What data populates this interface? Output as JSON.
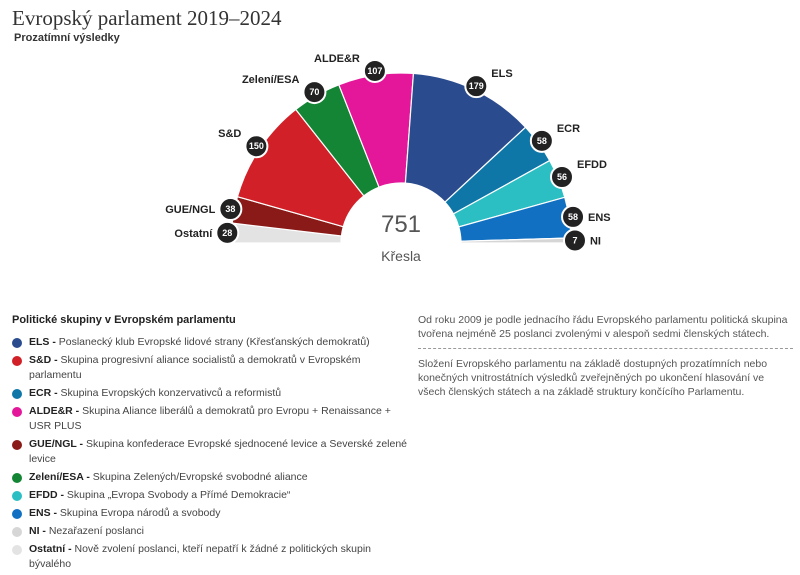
{
  "header": {
    "title": "Evropský parlament 2019–2024",
    "subtitle": "Prozatímní výsledky"
  },
  "chart_data": {
    "type": "pie",
    "variant": "parliament-hemicycle",
    "total": "751",
    "total_label": "Křesla",
    "series": [
      {
        "label": "Ostatní",
        "value": 28,
        "color": "#e3e3e3"
      },
      {
        "label": "GUE/NGL",
        "value": 38,
        "color": "#8a1a17"
      },
      {
        "label": "S&D",
        "value": 150,
        "color": "#d12027"
      },
      {
        "label": "Zelení/ESA",
        "value": 70,
        "color": "#138535"
      },
      {
        "label": "ALDE&R",
        "value": 107,
        "color": "#e4179b"
      },
      {
        "label": "ELS",
        "value": 179,
        "color": "#2a4b8d"
      },
      {
        "label": "ECR",
        "value": 58,
        "color": "#0e77a8"
      },
      {
        "label": "EFDD",
        "value": 56,
        "color": "#2bbfc4"
      },
      {
        "label": "ENS",
        "value": 58,
        "color": "#1170c2"
      },
      {
        "label": "NI",
        "value": 7,
        "color": "#d6d6d6"
      }
    ]
  },
  "legend": {
    "title": "Politické skupiny v Evropském parlamentu",
    "items": [
      {
        "abbr": "ELS -",
        "desc": " Poslanecký klub Evropské lidové strany (Křesťanských demokratů)",
        "color": "#2a4b8d"
      },
      {
        "abbr": "S&D -",
        "desc": " Skupina progresivní aliance socialistů a demokratů v Evropském parlamentu",
        "color": "#d12027"
      },
      {
        "abbr": "ECR -",
        "desc": " Skupina Evropských konzervativců a reformistů",
        "color": "#0e77a8"
      },
      {
        "abbr": "ALDE&R -",
        "desc": " Skupina Aliance liberálů a demokratů pro Evropu + Renaissance + USR PLUS",
        "color": "#e4179b"
      },
      {
        "abbr": "GUE/NGL -",
        "desc": " Skupina konfederace Evropské sjednocené levice a Severské zelené levice",
        "color": "#8a1a17"
      },
      {
        "abbr": "Zelení/ESA -",
        "desc": " Skupina Zelených/Evropské svobodné aliance",
        "color": "#138535"
      },
      {
        "abbr": "EFDD -",
        "desc": " Skupina „Evropa Svobody a Přímé Demokracie“",
        "color": "#2bbfc4"
      },
      {
        "abbr": "ENS -",
        "desc": " Skupina Evropa národů a svobody",
        "color": "#1170c2"
      },
      {
        "abbr": "NI -",
        "desc": " Nezařazení poslanci",
        "color": "#d6d6d6"
      },
      {
        "abbr": "Ostatní -",
        "desc": " Nově zvolení poslanci, kteří nepatří k žádné z politických skupin bývalého",
        "color": "#e3e3e3"
      }
    ]
  },
  "notes": {
    "p1": "Od roku 2009 je podle jednacího řádu Evropského parlamentu politická skupina tvořena nejméně 25 poslanci zvolenými v alespoň sedmi členských státech.",
    "p2": "Složení Evropského parlamentu na základě dostupných prozatímních nebo konečných vnitrostátních výsledků zveřejněných po ukončení hlasování ve všech členských státech a na základě struktury končícího Parlamentu."
  }
}
